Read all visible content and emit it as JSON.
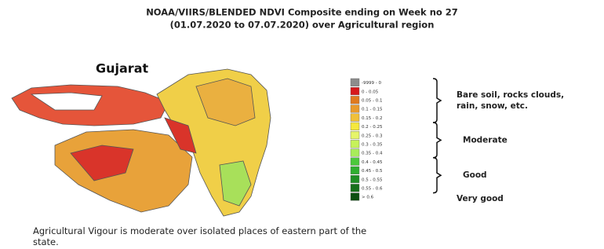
{
  "header": {
    "title_line1": "NOAA/VIIRS/BLENDED NDVI Composite ending on Week no 27",
    "title_line2": "(01.07.2020 to 07.07.2020) over Agricultural region"
  },
  "map": {
    "region": "Gujarat"
  },
  "legend": {
    "entries": [
      {
        "label": "-9999 - 0",
        "color": "#8c8c8c"
      },
      {
        "label": "0 - 0.05",
        "color": "#d7191c"
      },
      {
        "label": "0.05 - 0.1",
        "color": "#e07a1f"
      },
      {
        "label": "0.1 - 0.15",
        "color": "#e99a2c"
      },
      {
        "label": "0.15 - 0.2",
        "color": "#f0c03a"
      },
      {
        "label": "0.2 - 0.25",
        "color": "#f5e83c"
      },
      {
        "label": "0.25 - 0.3",
        "color": "#e6f56a"
      },
      {
        "label": "0.3 - 0.35",
        "color": "#c6f25a"
      },
      {
        "label": "0.35 - 0.4",
        "color": "#a8ec5a"
      },
      {
        "label": "0.4 - 0.45",
        "color": "#4cc83c"
      },
      {
        "label": "0.45 - 0.5",
        "color": "#2fae2f"
      },
      {
        "label": "0.5 - 0.55",
        "color": "#1f8f24"
      },
      {
        "label": "0.55 - 0.6",
        "color": "#16701a"
      },
      {
        "label": "> 0.6",
        "color": "#0c4f10"
      }
    ],
    "groups": [
      "Bare soil, rocks clouds, rain, snow, etc.",
      "Moderate",
      "Good",
      "Very good"
    ]
  },
  "caption": "Agricultural Vigour is moderate over isolated places of eastern part of the state."
}
